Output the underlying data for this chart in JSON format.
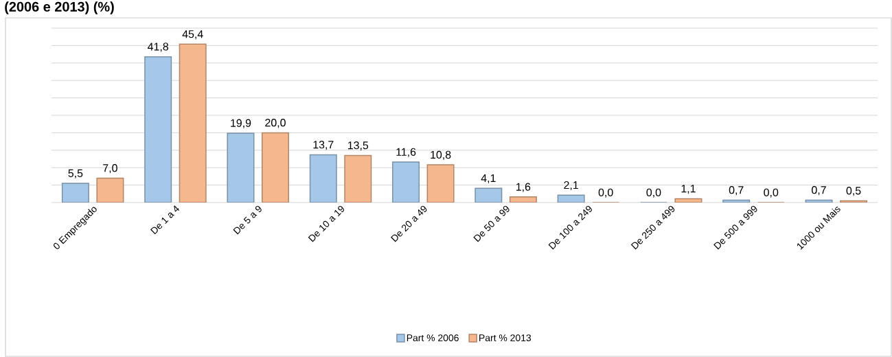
{
  "chart_data": {
    "type": "bar",
    "title": "(2006 e 2013) (%)",
    "categories": [
      "0 Empregado",
      "De 1 a 4",
      "De 5 a 9",
      "De 10 a 19",
      "De 20 a 49",
      "De 50 a 99",
      "De 100 a 249",
      "De 250 a 499",
      "De 500 a 999",
      "1000 ou Mais"
    ],
    "series": [
      {
        "name": "Part % 2006",
        "color": "#a5c8e8",
        "values": [
          5.5,
          41.8,
          19.9,
          13.7,
          11.6,
          4.1,
          2.1,
          0.0,
          0.7,
          0.7
        ],
        "value_labels": [
          "5,5",
          "41,8",
          "19,9",
          "13,7",
          "11,6",
          "4,1",
          "2,1",
          "0,0",
          "0,7",
          "0,7"
        ]
      },
      {
        "name": "Part % 2013",
        "color": "#f5b78e",
        "values": [
          7.0,
          45.4,
          20.0,
          13.5,
          10.8,
          1.6,
          0.0,
          1.1,
          0.0,
          0.5
        ],
        "value_labels": [
          "7,0",
          "45,4",
          "20,0",
          "13,5",
          "10,8",
          "1,6",
          "0,0",
          "1,1",
          "0,0",
          "0,5"
        ]
      }
    ],
    "ylim": [
      0,
      50
    ],
    "yticks": [
      {
        "value": 0,
        "label": null
      },
      {
        "value": 5,
        "label": null
      },
      {
        "value": 10,
        "label": null
      },
      {
        "value": 15,
        "label": null
      },
      {
        "value": 20,
        "label": null
      },
      {
        "value": 25,
        "label": null
      },
      {
        "value": 30,
        "label": null
      },
      {
        "value": 35,
        "label": null
      },
      {
        "value": 40,
        "label": null
      },
      {
        "value": 45,
        "label": null
      },
      {
        "value": 50,
        "label": null
      }
    ],
    "grid": "y",
    "legend": "bottom",
    "tick_labels": "x"
  }
}
